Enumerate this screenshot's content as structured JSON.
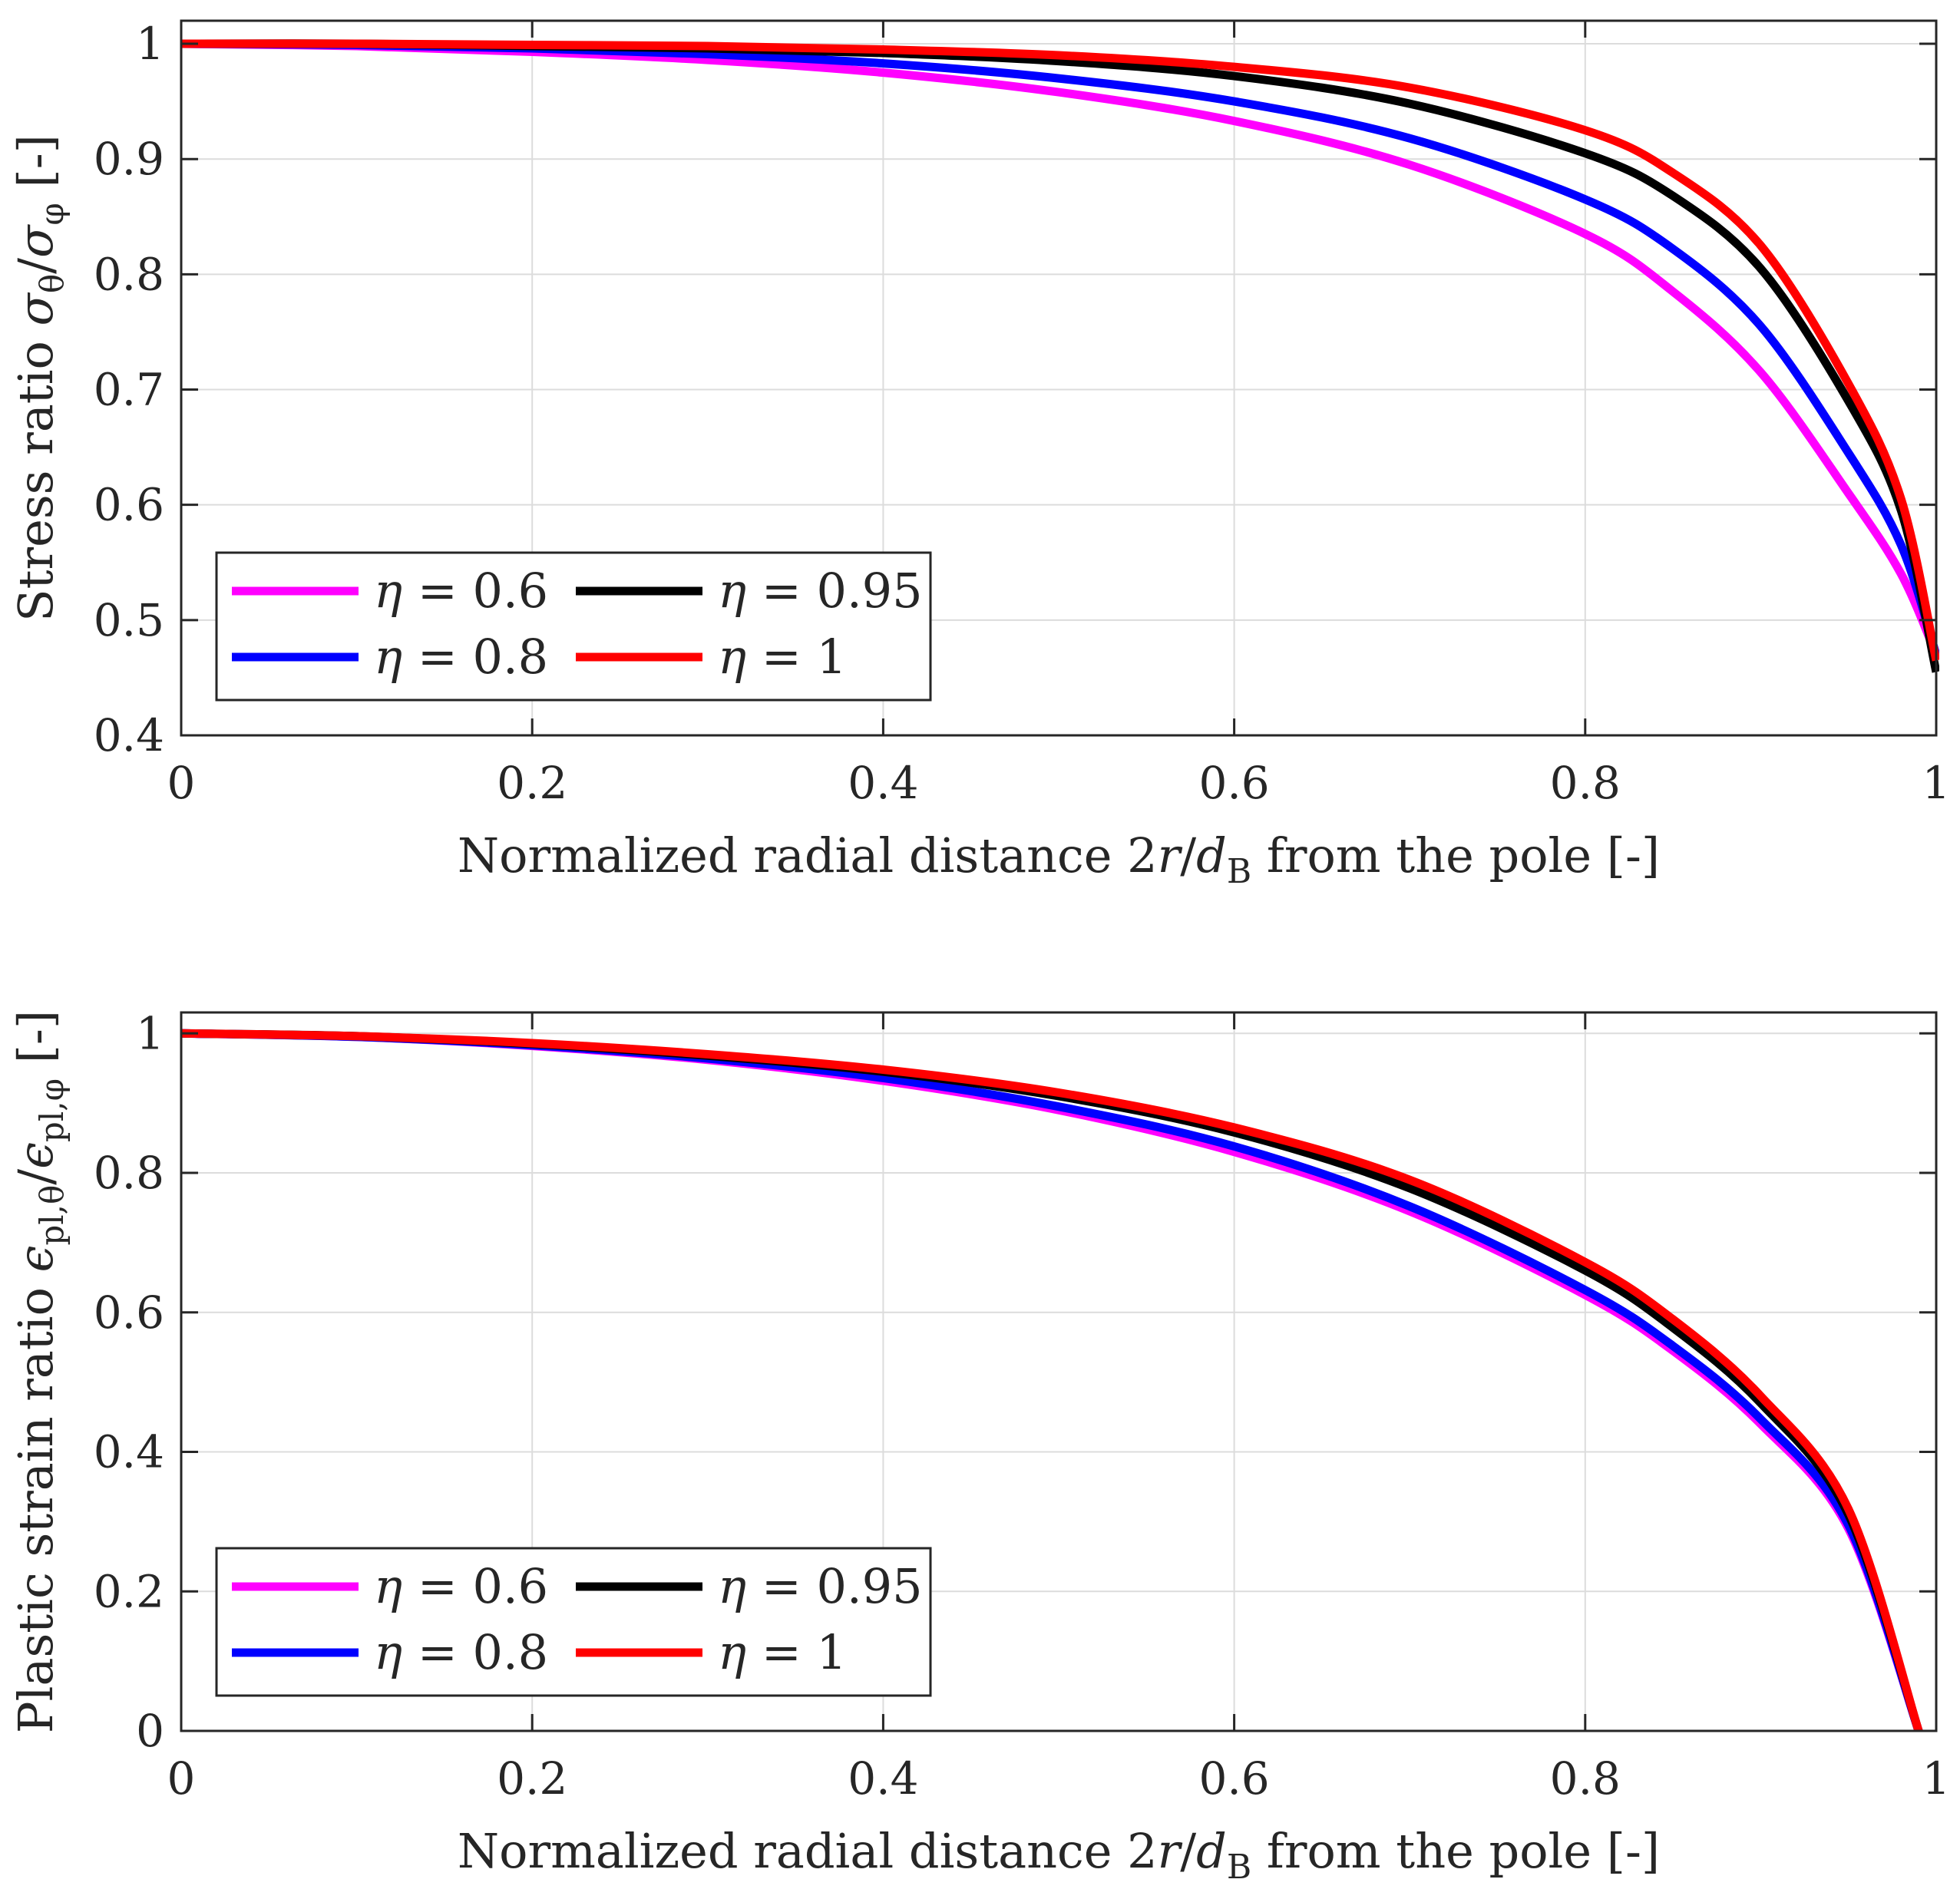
{
  "colors": {
    "magenta": "#ff00ff",
    "blue": "#0000ff",
    "black": "#000000",
    "red": "#ff0000",
    "grid": "#dcdcdc",
    "axis": "#262626"
  },
  "chart_data": [
    {
      "type": "line",
      "xlabel": "Normalized radial distance 2r/d_B from the pole [-]",
      "xlabel_parts": {
        "pre": "Normalized radial distance 2",
        "var": "r",
        "slash": "/",
        "d": "d",
        "sub": "B",
        "post": " from the pole [-]"
      },
      "ylabel": "Stress ratio σθ/σφ [-]",
      "ylabel_parts": {
        "pre": "Stress ratio ",
        "s1": "σ",
        "sub1": "θ",
        "slash": "/",
        "s2": "σ",
        "sub2": "φ",
        "post": " [-]"
      },
      "xlim": [
        0,
        1
      ],
      "ylim": [
        0.4,
        1.02
      ],
      "xticks": [
        0,
        0.2,
        0.4,
        0.6,
        0.8,
        1
      ],
      "xtick_labels": [
        "0",
        "0.2",
        "0.4",
        "0.6",
        "0.8",
        "1"
      ],
      "yticks": [
        0.4,
        0.5,
        0.6,
        0.7,
        0.8,
        0.9,
        1
      ],
      "ytick_labels": [
        "0.4",
        "0.5",
        "0.6",
        "0.7",
        "0.8",
        "0.9",
        "1"
      ],
      "grid": true,
      "legend_position": "bottom-left",
      "x": [
        0,
        0.1,
        0.2,
        0.3,
        0.4,
        0.5,
        0.6,
        0.7,
        0.8,
        0.85,
        0.9,
        0.95,
        0.98,
        1.0
      ],
      "series": [
        {
          "name": "η = 0.6",
          "symbol": "η",
          "eq": " = 0.6",
          "color": "#ff00ff",
          "values": [
            1.0,
            0.998,
            0.993,
            0.986,
            0.975,
            0.958,
            0.933,
            0.895,
            0.835,
            0.785,
            0.715,
            0.61,
            0.54,
            0.47
          ]
        },
        {
          "name": "η = 0.8",
          "symbol": "η",
          "eq": " = 0.8",
          "color": "#0000ff",
          "values": [
            1.0,
            0.999,
            0.996,
            0.991,
            0.983,
            0.97,
            0.95,
            0.918,
            0.865,
            0.822,
            0.755,
            0.645,
            0.565,
            0.47
          ]
        },
        {
          "name": "η = 0.95",
          "symbol": "η",
          "eq": " = 0.95",
          "color": "#000000",
          "values": [
            1.0,
            1.0,
            0.998,
            0.996,
            0.992,
            0.985,
            0.972,
            0.948,
            0.905,
            0.868,
            0.805,
            0.69,
            0.595,
            0.455
          ]
        },
        {
          "name": "η = 1",
          "symbol": "η",
          "eq": " = 1",
          "color": "#ff0000",
          "values": [
            1.0,
            1.0,
            0.999,
            0.998,
            0.995,
            0.99,
            0.98,
            0.962,
            0.925,
            0.888,
            0.825,
            0.705,
            0.605,
            0.465
          ]
        }
      ]
    },
    {
      "type": "line",
      "xlabel": "Normalized radial distance 2r/d_B from the pole [-]",
      "xlabel_parts": {
        "pre": "Normalized radial distance 2",
        "var": "r",
        "slash": "/",
        "d": "d",
        "sub": "B",
        "post": " from the pole [-]"
      },
      "ylabel": "Plastic strain ratio εpl,θ/εpl,φ [-]",
      "ylabel_parts": {
        "pre": "Plastic strain ratio ",
        "s1": "ϵ",
        "sub1": "pl,θ",
        "slash": "/",
        "s2": "ϵ",
        "sub2": "pl,φ",
        "post": " [-]"
      },
      "xlim": [
        0,
        1
      ],
      "ylim": [
        0,
        1.03
      ],
      "xticks": [
        0,
        0.2,
        0.4,
        0.6,
        0.8,
        1
      ],
      "xtick_labels": [
        "0",
        "0.2",
        "0.4",
        "0.6",
        "0.8",
        "1"
      ],
      "yticks": [
        0,
        0.2,
        0.4,
        0.6,
        0.8,
        1
      ],
      "ytick_labels": [
        "0",
        "0.2",
        "0.4",
        "0.6",
        "0.8",
        "1"
      ],
      "grid": true,
      "legend_position": "bottom-left",
      "x": [
        0,
        0.1,
        0.2,
        0.3,
        0.4,
        0.5,
        0.6,
        0.7,
        0.8,
        0.85,
        0.9,
        0.95,
        0.99
      ],
      "series": [
        {
          "name": "η = 0.6",
          "symbol": "η",
          "eq": " = 0.6",
          "color": "#ff00ff",
          "values": [
            1.0,
            0.995,
            0.982,
            0.962,
            0.932,
            0.89,
            0.83,
            0.745,
            0.625,
            0.545,
            0.44,
            0.29,
            0.0
          ]
        },
        {
          "name": "η = 0.8",
          "symbol": "η",
          "eq": " = 0.8",
          "color": "#0000ff",
          "values": [
            1.0,
            0.995,
            0.983,
            0.964,
            0.936,
            0.895,
            0.838,
            0.752,
            0.632,
            0.552,
            0.447,
            0.295,
            0.0
          ]
        },
        {
          "name": "η = 0.95",
          "symbol": "η",
          "eq": " = 0.95",
          "color": "#000000",
          "values": [
            1.0,
            0.996,
            0.985,
            0.968,
            0.945,
            0.91,
            0.858,
            0.778,
            0.66,
            0.578,
            0.47,
            0.31,
            0.0
          ]
        },
        {
          "name": "η = 1",
          "symbol": "η",
          "eq": " = 1",
          "color": "#ff0000",
          "values": [
            1.0,
            0.996,
            0.986,
            0.97,
            0.948,
            0.915,
            0.865,
            0.79,
            0.672,
            0.59,
            0.48,
            0.318,
            0.0
          ]
        }
      ]
    }
  ]
}
